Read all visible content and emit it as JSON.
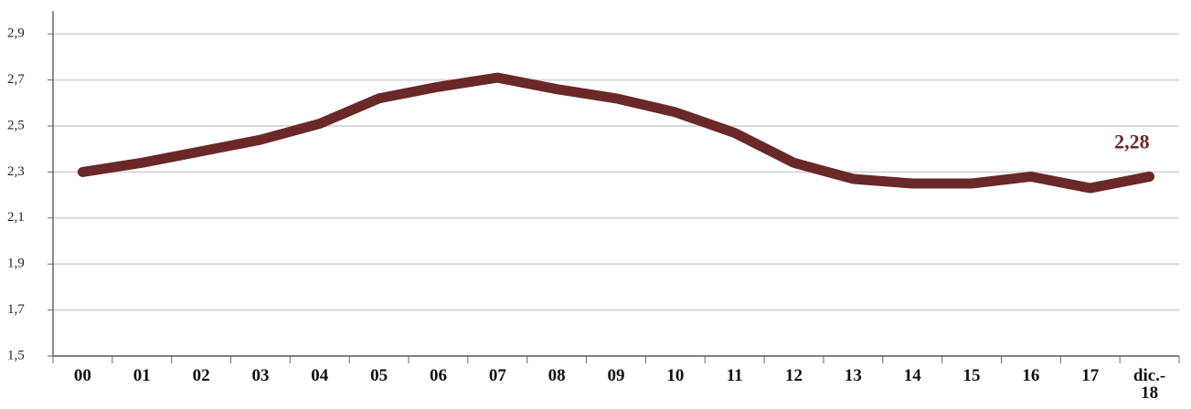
{
  "chart_data": {
    "type": "line",
    "categories": [
      "00",
      "01",
      "02",
      "03",
      "04",
      "05",
      "06",
      "07",
      "08",
      "09",
      "10",
      "11",
      "12",
      "13",
      "14",
      "15",
      "16",
      "17",
      "dic.- 18"
    ],
    "series": [
      {
        "color": "#6b2828",
        "values": [
          2.3,
          2.34,
          2.39,
          2.44,
          2.51,
          2.62,
          2.67,
          2.71,
          2.66,
          2.62,
          2.56,
          2.47,
          2.34,
          2.27,
          2.25,
          2.25,
          2.28,
          2.23,
          2.28
        ],
        "value_labels": [
          null,
          null,
          null,
          null,
          null,
          null,
          null,
          null,
          null,
          null,
          null,
          null,
          null,
          null,
          null,
          null,
          null,
          null,
          "2,28"
        ]
      }
    ],
    "ylim": [
      1.5,
      3.0
    ],
    "yticks": [
      {
        "value": 1.5,
        "label": "1,5"
      },
      {
        "value": 1.7,
        "label": "1,7"
      },
      {
        "value": 1.9,
        "label": "1,9"
      },
      {
        "value": 2.1,
        "label": "2,1"
      },
      {
        "value": 2.3,
        "label": "2,3"
      },
      {
        "value": 2.5,
        "label": "2,5"
      },
      {
        "value": 2.7,
        "label": "2,7"
      },
      {
        "value": 2.9,
        "label": "2,9"
      }
    ],
    "grid": true
  }
}
